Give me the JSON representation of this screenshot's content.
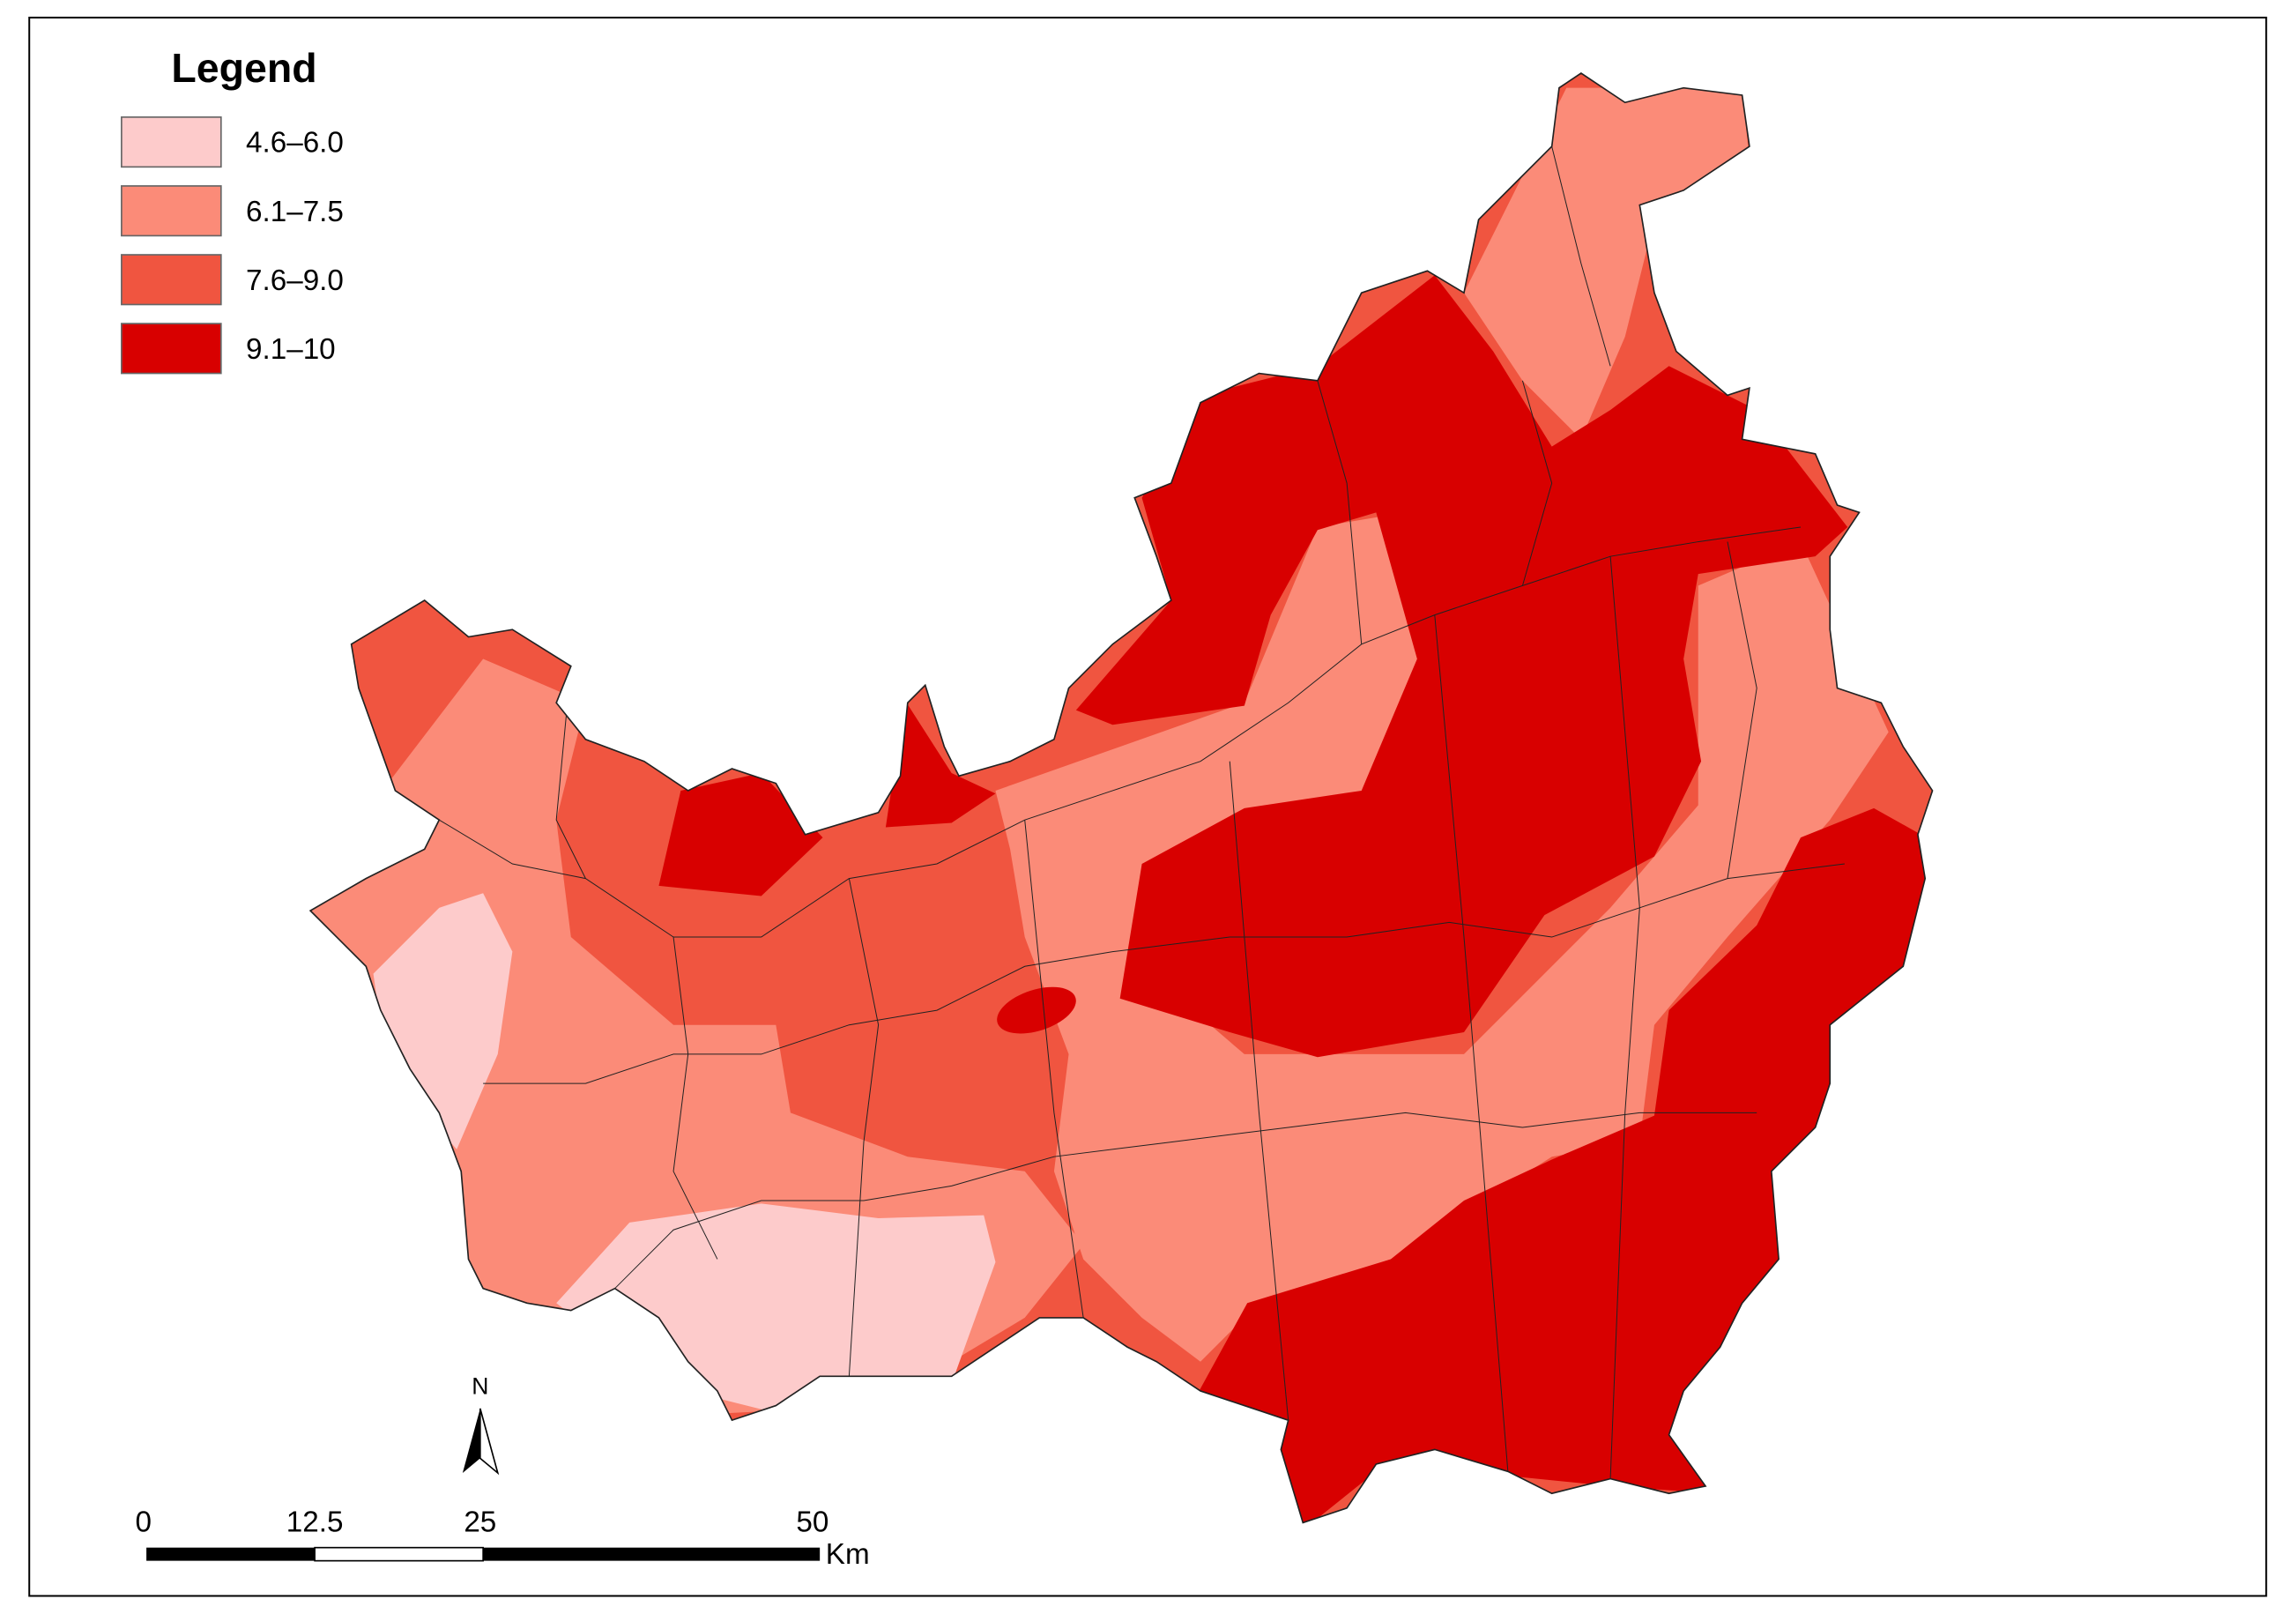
{
  "legend": {
    "title": "Legend",
    "items": [
      {
        "label": "4.6–6.0",
        "color": "#fdcbcb"
      },
      {
        "label": "6.1–7.5",
        "color": "#fb8b78"
      },
      {
        "label": "7.6–9.0",
        "color": "#f05540"
      },
      {
        "label": "9.1–10",
        "color": "#d80000"
      }
    ]
  },
  "north_arrow": "N",
  "scale_bar": {
    "labels": [
      "0",
      "12.5",
      "25",
      "50"
    ],
    "unit": "Km"
  }
}
